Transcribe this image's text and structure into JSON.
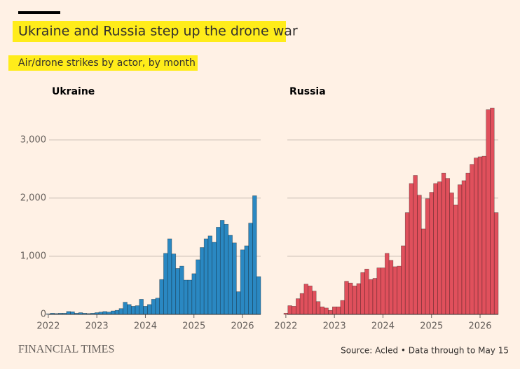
{
  "title": "Ukraine and Russia step up the drone war",
  "subtitle": "Air/drone strikes by actor, by month",
  "source": "Source: Acled • Data through to May 15",
  "brand": "FINANCIAL TIMES",
  "chart_data": [
    {
      "type": "bar",
      "title": "Ukraine",
      "color": "#2a88c2",
      "categories": [
        "2022",
        null,
        null,
        null,
        null,
        null,
        null,
        null,
        null,
        null,
        null,
        null,
        "2023",
        null,
        null,
        null,
        null,
        null,
        null,
        null,
        null,
        null,
        null,
        null,
        "2024",
        null,
        null,
        null,
        null,
        null,
        null,
        null,
        null,
        null,
        null,
        null,
        "2025",
        null,
        null,
        null,
        null,
        null,
        null,
        null,
        null,
        null,
        null,
        null,
        "2026",
        null,
        null,
        null,
        null
      ],
      "values": [
        10,
        20,
        15,
        20,
        20,
        50,
        45,
        20,
        30,
        20,
        15,
        20,
        30,
        40,
        50,
        40,
        60,
        70,
        100,
        210,
        170,
        140,
        150,
        260,
        140,
        170,
        260,
        280,
        600,
        1050,
        1300,
        1040,
        790,
        830,
        590,
        590,
        700,
        940,
        1150,
        1300,
        1350,
        1240,
        1500,
        1620,
        1550,
        1360,
        1230,
        390,
        1110,
        1180,
        1570,
        2040,
        650
      ],
      "ylim": [
        0,
        3600
      ],
      "yticks": [
        0,
        {
          "value": 1000,
          "label": "1,000"
        },
        {
          "value": 2000,
          "label": "2,000"
        },
        {
          "value": 3000,
          "label": "3,000"
        }
      ],
      "grid": true
    },
    {
      "type": "bar",
      "title": "Russia",
      "color": "#e0505c",
      "categories": [
        "2022",
        null,
        null,
        null,
        null,
        null,
        null,
        null,
        null,
        null,
        null,
        null,
        "2023",
        null,
        null,
        null,
        null,
        null,
        null,
        null,
        null,
        null,
        null,
        null,
        "2024",
        null,
        null,
        null,
        null,
        null,
        null,
        null,
        null,
        null,
        null,
        null,
        "2025",
        null,
        null,
        null,
        null,
        null,
        null,
        null,
        null,
        null,
        null,
        null,
        "2026",
        null,
        null,
        null,
        null
      ],
      "values": [
        20,
        150,
        140,
        270,
        360,
        520,
        490,
        400,
        220,
        130,
        110,
        70,
        130,
        130,
        240,
        570,
        540,
        490,
        530,
        720,
        780,
        600,
        620,
        800,
        800,
        1050,
        930,
        820,
        830,
        1180,
        1750,
        2250,
        2390,
        2050,
        1470,
        1990,
        2100,
        2250,
        2280,
        2430,
        2340,
        2090,
        1880,
        2230,
        2300,
        2430,
        2580,
        2690,
        2710,
        2720,
        3520,
        3550,
        1750
      ],
      "ylim": [
        0,
        3600
      ],
      "yticks": [
        0,
        1000,
        2000,
        3000
      ],
      "grid": true
    }
  ]
}
